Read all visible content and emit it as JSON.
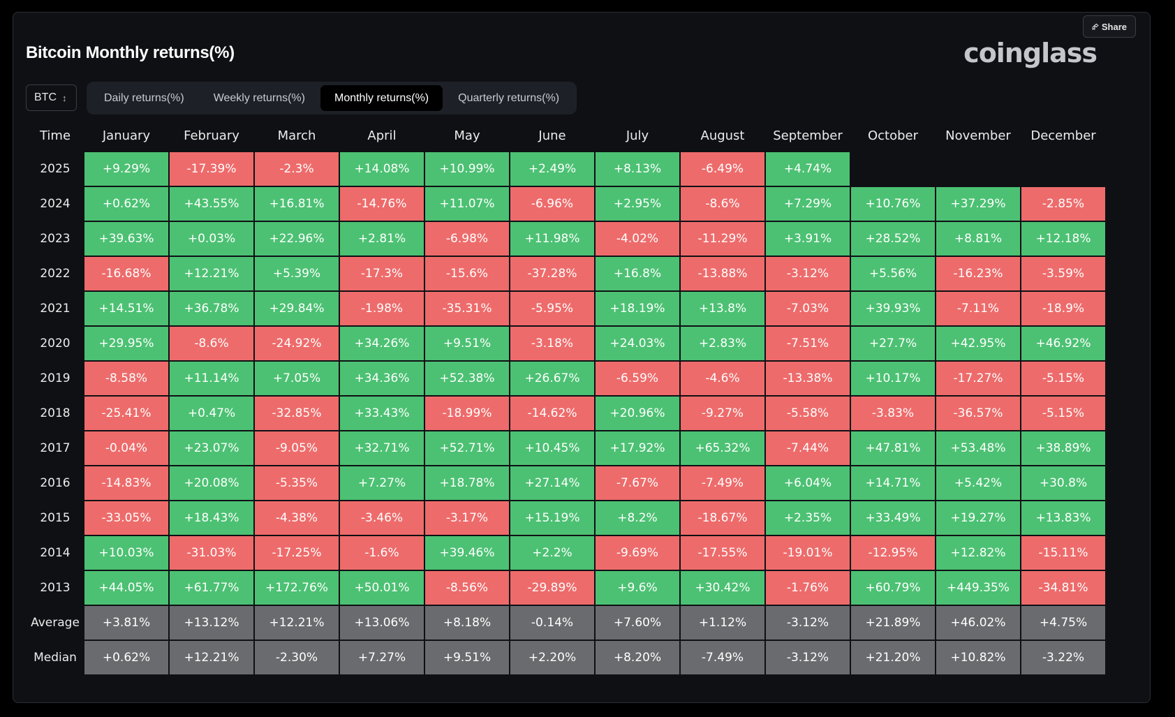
{
  "header": {
    "title": "Bitcoin Monthly returns(%)",
    "brand": "coinglass",
    "share_label": "Share"
  },
  "controls": {
    "symbol": "BTC",
    "tabs": [
      {
        "label": "Daily returns(%)",
        "active": false
      },
      {
        "label": "Weekly returns(%)",
        "active": false
      },
      {
        "label": "Monthly returns(%)",
        "active": true
      },
      {
        "label": "Quarterly returns(%)",
        "active": false
      }
    ]
  },
  "colors": {
    "positive": "#4cc173",
    "negative": "#ee6b6b",
    "summary": "#6a6b6e",
    "background": "#0e1014"
  },
  "chart_data": {
    "type": "heatmap",
    "title": "Bitcoin Monthly returns(%)",
    "row_header": "Time",
    "columns": [
      "January",
      "February",
      "March",
      "April",
      "May",
      "June",
      "July",
      "August",
      "September",
      "October",
      "November",
      "December"
    ],
    "rows": [
      {
        "label": "2025",
        "values": [
          "+9.29%",
          "-17.39%",
          "-2.3%",
          "+14.08%",
          "+10.99%",
          "+2.49%",
          "+8.13%",
          "-6.49%",
          "+4.74%",
          "",
          "",
          ""
        ]
      },
      {
        "label": "2024",
        "values": [
          "+0.62%",
          "+43.55%",
          "+16.81%",
          "-14.76%",
          "+11.07%",
          "-6.96%",
          "+2.95%",
          "-8.6%",
          "+7.29%",
          "+10.76%",
          "+37.29%",
          "-2.85%"
        ]
      },
      {
        "label": "2023",
        "values": [
          "+39.63%",
          "+0.03%",
          "+22.96%",
          "+2.81%",
          "-6.98%",
          "+11.98%",
          "-4.02%",
          "-11.29%",
          "+3.91%",
          "+28.52%",
          "+8.81%",
          "+12.18%"
        ]
      },
      {
        "label": "2022",
        "values": [
          "-16.68%",
          "+12.21%",
          "+5.39%",
          "-17.3%",
          "-15.6%",
          "-37.28%",
          "+16.8%",
          "-13.88%",
          "-3.12%",
          "+5.56%",
          "-16.23%",
          "-3.59%"
        ]
      },
      {
        "label": "2021",
        "values": [
          "+14.51%",
          "+36.78%",
          "+29.84%",
          "-1.98%",
          "-35.31%",
          "-5.95%",
          "+18.19%",
          "+13.8%",
          "-7.03%",
          "+39.93%",
          "-7.11%",
          "-18.9%"
        ]
      },
      {
        "label": "2020",
        "values": [
          "+29.95%",
          "-8.6%",
          "-24.92%",
          "+34.26%",
          "+9.51%",
          "-3.18%",
          "+24.03%",
          "+2.83%",
          "-7.51%",
          "+27.7%",
          "+42.95%",
          "+46.92%"
        ]
      },
      {
        "label": "2019",
        "values": [
          "-8.58%",
          "+11.14%",
          "+7.05%",
          "+34.36%",
          "+52.38%",
          "+26.67%",
          "-6.59%",
          "-4.6%",
          "-13.38%",
          "+10.17%",
          "-17.27%",
          "-5.15%"
        ]
      },
      {
        "label": "2018",
        "values": [
          "-25.41%",
          "+0.47%",
          "-32.85%",
          "+33.43%",
          "-18.99%",
          "-14.62%",
          "+20.96%",
          "-9.27%",
          "-5.58%",
          "-3.83%",
          "-36.57%",
          "-5.15%"
        ]
      },
      {
        "label": "2017",
        "values": [
          "-0.04%",
          "+23.07%",
          "-9.05%",
          "+32.71%",
          "+52.71%",
          "+10.45%",
          "+17.92%",
          "+65.32%",
          "-7.44%",
          "+47.81%",
          "+53.48%",
          "+38.89%"
        ]
      },
      {
        "label": "2016",
        "values": [
          "-14.83%",
          "+20.08%",
          "-5.35%",
          "+7.27%",
          "+18.78%",
          "+27.14%",
          "-7.67%",
          "-7.49%",
          "+6.04%",
          "+14.71%",
          "+5.42%",
          "+30.8%"
        ]
      },
      {
        "label": "2015",
        "values": [
          "-33.05%",
          "+18.43%",
          "-4.38%",
          "-3.46%",
          "-3.17%",
          "+15.19%",
          "+8.2%",
          "-18.67%",
          "+2.35%",
          "+33.49%",
          "+19.27%",
          "+13.83%"
        ]
      },
      {
        "label": "2014",
        "values": [
          "+10.03%",
          "-31.03%",
          "-17.25%",
          "-1.6%",
          "+39.46%",
          "+2.2%",
          "-9.69%",
          "-17.55%",
          "-19.01%",
          "-12.95%",
          "+12.82%",
          "-15.11%"
        ]
      },
      {
        "label": "2013",
        "values": [
          "+44.05%",
          "+61.77%",
          "+172.76%",
          "+50.01%",
          "-8.56%",
          "-29.89%",
          "+9.6%",
          "+30.42%",
          "-1.76%",
          "+60.79%",
          "+449.35%",
          "-34.81%"
        ]
      }
    ],
    "summary_rows": [
      {
        "label": "Average",
        "values": [
          "+3.81%",
          "+13.12%",
          "+12.21%",
          "+13.06%",
          "+8.18%",
          "-0.14%",
          "+7.60%",
          "+1.12%",
          "-3.12%",
          "+21.89%",
          "+46.02%",
          "+4.75%"
        ]
      },
      {
        "label": "Median",
        "values": [
          "+0.62%",
          "+12.21%",
          "-2.30%",
          "+7.27%",
          "+9.51%",
          "+2.20%",
          "+8.20%",
          "-7.49%",
          "-3.12%",
          "+21.20%",
          "+10.82%",
          "-3.22%"
        ]
      }
    ]
  }
}
